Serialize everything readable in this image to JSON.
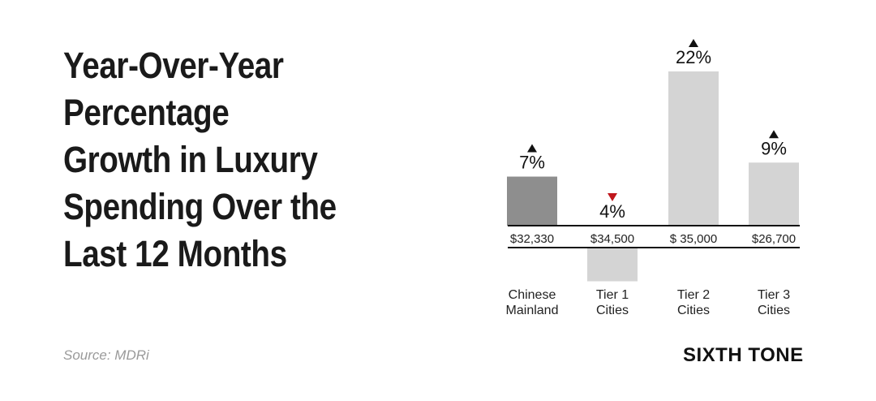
{
  "title_lines": [
    "Year-Over-Year",
    "Percentage",
    "Growth in Luxury",
    "Spending Over the",
    "Last 12 Months"
  ],
  "source": "Source: MDRi",
  "brand": "SIXTH TONE",
  "chart_data": {
    "type": "bar",
    "categories": [
      [
        "Chinese",
        "Mainland"
      ],
      [
        "Tier 1",
        "Cities"
      ],
      [
        "Tier 2",
        "Cities"
      ],
      [
        "Tier 3",
        "Cities"
      ]
    ],
    "values": [
      7,
      -4,
      22,
      9
    ],
    "value_labels": [
      "7%",
      "4%",
      "22%",
      "9%"
    ],
    "spending_labels": [
      "$32,330",
      "$34,500",
      "$ 35,000",
      "$26,700"
    ],
    "direction": [
      "up",
      "down",
      "up",
      "up"
    ],
    "ylabel": "",
    "ylim": [
      -4,
      22
    ],
    "colors": {
      "highlight": "#8e8e8e",
      "default": "#d4d4d4",
      "up_arrow": "#111111",
      "down_arrow": "#c0161c"
    }
  }
}
